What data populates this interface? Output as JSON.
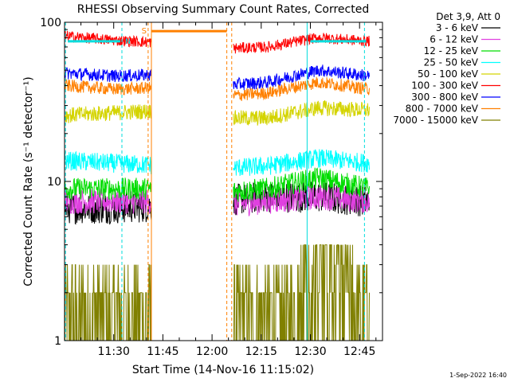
{
  "chart_data": {
    "type": "line",
    "title": "RHESSI Observing Summary Count Rates, Corrected",
    "xlabel": "Start Time (14-Nov-16 11:15:02)",
    "ylabel": "Corrected Count Rate (s⁻¹ detector⁻¹)",
    "yscale": "log",
    "ylim": [
      1,
      100
    ],
    "xlim_minutes": [
      0,
      97
    ],
    "x_ticks": [
      {
        "m": 15,
        "label": "11:30"
      },
      {
        "m": 30,
        "label": "11:45"
      },
      {
        "m": 45,
        "label": "12:00"
      },
      {
        "m": 60,
        "label": "12:15"
      },
      {
        "m": 75,
        "label": "12:30"
      },
      {
        "m": 90,
        "label": "12:45"
      }
    ],
    "y_ticks": [
      {
        "v": 1,
        "label": "1"
      },
      {
        "v": 10,
        "label": "10"
      },
      {
        "v": 100,
        "label": "100"
      }
    ],
    "legend_header": "Det 3,9, Att 0",
    "legend_position": "right",
    "flags": {
      "s": "S",
      "n": "N"
    },
    "segments": [
      {
        "start": 0,
        "end": 26.5
      },
      {
        "start": 51.5,
        "end": 93
      }
    ],
    "series": [
      {
        "name": "3 - 6 keV",
        "color": "#000000",
        "level": [
          6.8,
          6.8,
          7.0,
          7.5,
          8.0,
          8.0,
          7.5
        ],
        "noise": 0.1
      },
      {
        "name": "6 - 12 keV",
        "color": "#e040e0",
        "level": [
          7.5,
          7.5,
          7.5,
          7.0,
          7.5,
          8.0,
          7.5
        ],
        "noise": 0.08
      },
      {
        "name": "12 - 25 keV",
        "color": "#00dd00",
        "level": [
          9.0,
          9.0,
          9.0,
          8.5,
          9.0,
          10.5,
          9.0
        ],
        "noise": 0.07
      },
      {
        "name": "25 - 50 keV",
        "color": "#00ffff",
        "level": [
          13.5,
          13.0,
          12.5,
          12.0,
          12.5,
          14.0,
          13.0
        ],
        "noise": 0.06
      },
      {
        "name": "50 - 100 keV",
        "color": "#d4d400",
        "level": [
          26,
          27,
          28,
          25,
          25,
          29,
          28
        ],
        "noise": 0.05
      },
      {
        "name": "100 - 300 keV",
        "color": "#ff0000",
        "level": [
          82,
          77,
          74,
          68,
          70,
          80,
          76
        ],
        "noise": 0.035
      },
      {
        "name": "300 - 800 keV",
        "color": "#0000ff",
        "level": [
          48,
          46,
          47,
          40,
          42,
          50,
          46
        ],
        "noise": 0.04
      },
      {
        "name": "800 - 7000 keV",
        "color": "#ff8000",
        "level": [
          40,
          38,
          39,
          34,
          36,
          42,
          38
        ],
        "noise": 0.04
      },
      {
        "name": "7000 - 15000 keV",
        "color": "#808000",
        "level": [
          2.0,
          2.0,
          2.0,
          2.0,
          2.0,
          2.6,
          2.2
        ],
        "noise": 0.35
      }
    ],
    "s_bar_level": 88,
    "n_bar_level": 76,
    "timestamp": "1-Sep-2022 16:40"
  }
}
